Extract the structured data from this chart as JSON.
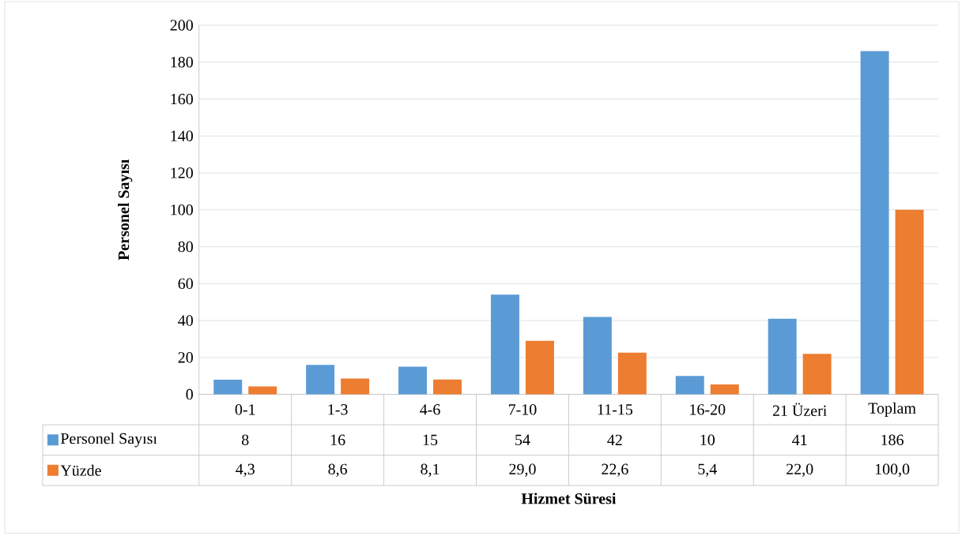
{
  "chart_data": {
    "type": "bar",
    "xlabel": "Hizmet Süresi",
    "ylabel": "Personel Sayısı",
    "categories": [
      "0-1",
      "1-3",
      "4-6",
      "7-10",
      "11-15",
      "16-20",
      "21 Üzeri",
      "Toplam"
    ],
    "series": [
      {
        "name": "Personel Sayısı",
        "color": "#5b9bd5",
        "values": [
          8,
          16,
          15,
          54,
          42,
          10,
          41,
          186
        ],
        "value_labels": [
          "8",
          "16",
          "15",
          "54",
          "42",
          "10",
          "41",
          "186"
        ]
      },
      {
        "name": "Yüzde",
        "color": "#ed7d31",
        "values": [
          4.3,
          8.6,
          8.1,
          29.0,
          22.6,
          5.4,
          22.0,
          100.0
        ],
        "value_labels": [
          "4,3",
          "8,6",
          "8,1",
          "29,0",
          "22,6",
          "5,4",
          "22,0",
          "100,0"
        ]
      }
    ],
    "ylim": [
      0,
      200
    ],
    "yticks": [
      0,
      20,
      40,
      60,
      80,
      100,
      120,
      140,
      160,
      180,
      200
    ],
    "grid": "y",
    "legend": "bottom left"
  }
}
